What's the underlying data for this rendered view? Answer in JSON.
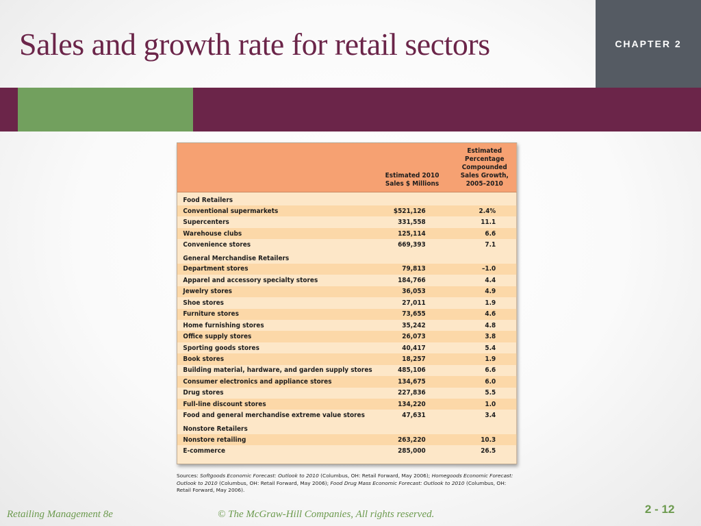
{
  "slide": {
    "title": "Sales and growth rate for retail sectors",
    "chapter": "CHAPTER 2"
  },
  "table": {
    "col_sales": [
      "Estimated 2010",
      "Sales $ Millions"
    ],
    "col_growth": [
      "Estimated",
      "Percentage",
      "Compounded",
      "Sales Growth,",
      "2005–2010"
    ],
    "rows": [
      {
        "type": "section",
        "name": "Food Retailers"
      },
      {
        "type": "row",
        "name": "Conventional supermarkets",
        "sales": "$521,126",
        "growth": "2.4%"
      },
      {
        "type": "row",
        "name": "Supercenters",
        "sales": "331,558",
        "growth": "11.1"
      },
      {
        "type": "row",
        "name": "Warehouse clubs",
        "sales": "125,114",
        "growth": "6.6"
      },
      {
        "type": "row",
        "name": "Convenience stores",
        "sales": "669,393",
        "growth": "7.1"
      },
      {
        "type": "section",
        "name": "General Merchandise Retailers"
      },
      {
        "type": "row",
        "name": "Department stores",
        "sales": "79,813",
        "growth": "–1.0"
      },
      {
        "type": "row",
        "name": "Apparel and accessory specialty stores",
        "sales": "184,766",
        "growth": "4.4"
      },
      {
        "type": "row",
        "name": "Jewelry stores",
        "sales": "36,053",
        "growth": "4.9"
      },
      {
        "type": "row",
        "name": "Shoe stores",
        "sales": "27,011",
        "growth": "1.9"
      },
      {
        "type": "row",
        "name": "Furniture stores",
        "sales": "73,655",
        "growth": "4.6"
      },
      {
        "type": "row",
        "name": "Home furnishing stores",
        "sales": "35,242",
        "growth": "4.8"
      },
      {
        "type": "row",
        "name": "Office supply stores",
        "sales": "26,073",
        "growth": "3.8"
      },
      {
        "type": "row",
        "name": "Sporting goods stores",
        "sales": "40,417",
        "growth": "5.4"
      },
      {
        "type": "row",
        "name": "Book stores",
        "sales": "18,257",
        "growth": "1.9"
      },
      {
        "type": "row",
        "name": "Building material, hardware, and garden supply stores",
        "sales": "485,106",
        "growth": "6.6"
      },
      {
        "type": "row",
        "name": "Consumer electronics and appliance stores",
        "sales": "134,675",
        "growth": "6.0"
      },
      {
        "type": "row",
        "name": "Drug stores",
        "sales": "227,836",
        "growth": "5.5"
      },
      {
        "type": "row",
        "name": "Full-line discount stores",
        "sales": "134,220",
        "growth": "1.0"
      },
      {
        "type": "row",
        "name": "Food and general merchandise extreme value stores",
        "sales": "47,631",
        "growth": "3.4"
      },
      {
        "type": "section",
        "name": "Nonstore Retailers"
      },
      {
        "type": "row",
        "name": "Nonstore retailing",
        "sales": "263,220",
        "growth": "10.3"
      },
      {
        "type": "row",
        "name": "E-commerce",
        "sales": "285,000",
        "growth": "26.5"
      }
    ]
  },
  "sources": {
    "p1": "Sources: ",
    "i1": "Softgoods Economic Forecast: Outlook to 2010",
    "p2": " (Columbus, OH: Retail Forward, May 2006); ",
    "i2": "Homegoods Economic Forecast: Outlook to 2010",
    "p3": " (Columbus, OH: Retail Forward, May 2006); ",
    "i3": "Food Drug Mass Economic Forecast: Outlook to 2010",
    "p4": " (Columbus, OH: Retail Forward, May 2006)."
  },
  "footer": {
    "book": "Retailing Management 8e",
    "copyright": "© The McGraw-Hill Companies, All rights reserved.",
    "page": "2 - 12"
  },
  "colors": {
    "title": "#6b2549",
    "band": "#6b2549",
    "band_accent": "#72a05e",
    "chapter_box": "#555b63",
    "table_header": "#f6a172",
    "row_alt": "#fcd8a8",
    "row": "#fde7c8",
    "footer_text": "#6c9a4e"
  }
}
